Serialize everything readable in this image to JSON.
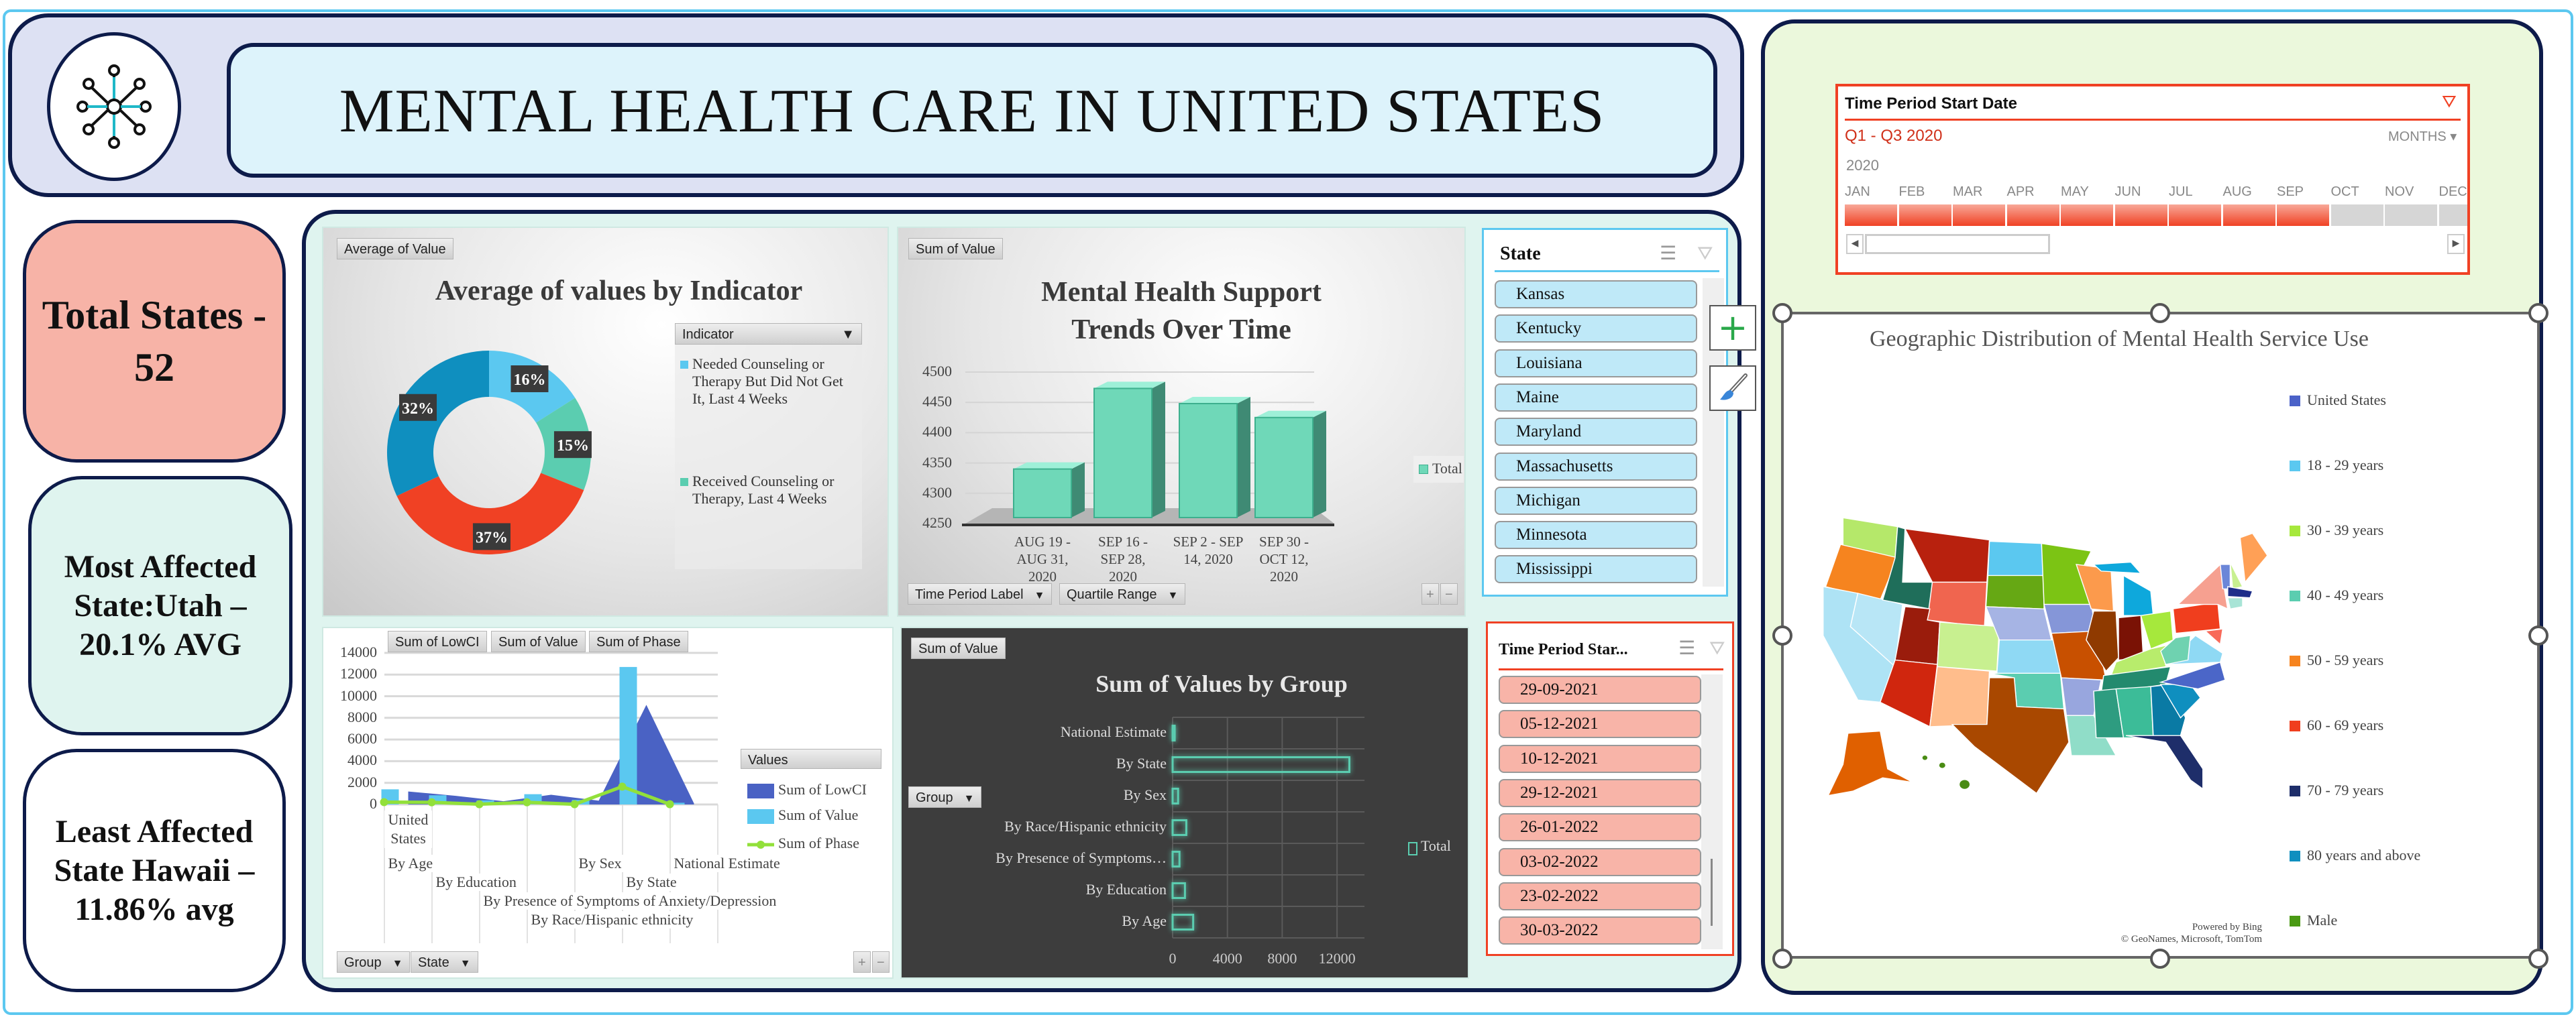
{
  "header": {
    "title": "MENTAL HEALTH CARE IN UNITED STATES",
    "logo_icon": "network-nodes-icon"
  },
  "kpis": [
    {
      "text": "Total States - 52",
      "color": "#f7b3a7"
    },
    {
      "text": "Most Affected State:Utah – 20.1% AVG",
      "color": "#dff4ef"
    },
    {
      "text": "Least Affected State Hawaii –11.86% avg",
      "color": "#ffffff"
    }
  ],
  "chart_data": [
    {
      "type": "pie",
      "variant": "donut",
      "title": "Average of values by Indicator",
      "field_buttons": {
        "value": "Average of Value",
        "legend": "Indicator"
      },
      "slices": [
        {
          "label": "Needed Counseling or Therapy But Did Not Get It, Last 4 Weeks",
          "value": 16,
          "data_label": "16%",
          "color": "#5bc8f0"
        },
        {
          "label": "Received Counseling or Therapy, Last 4 Weeks",
          "value": 15,
          "data_label": "15%",
          "color": "#5bcdb0"
        },
        {
          "label": "",
          "value": 37,
          "data_label": "37%",
          "color": "#f04124"
        },
        {
          "label": "",
          "value": 32,
          "data_label": "32%",
          "color": "#0f8fbf"
        }
      ],
      "legend": "right"
    },
    {
      "type": "bar",
      "variant": "3d-column",
      "title": "Mental Health Support Trends Over Time",
      "field_buttons": {
        "value": "Sum of Value",
        "axis": [
          "Time Period Label",
          "Quartile Range"
        ],
        "zoom": [
          "+",
          "−"
        ]
      },
      "categories": [
        "AUG 19 - AUG 31, 2020",
        "SEP 16 - SEP 28, 2020",
        "SEP 2 - SEP 14, 2020",
        "SEP 30 - OCT 12, 2020"
      ],
      "series": [
        {
          "name": "Total",
          "values": [
            4340,
            4473,
            4448,
            4425
          ],
          "color": "#6fd8b8"
        }
      ],
      "yticks": [
        4250,
        4300,
        4350,
        4400,
        4450,
        4500
      ],
      "ylim": [
        4250,
        4500
      ],
      "legend": "right"
    },
    {
      "type": "line",
      "variant": "combo area/column/line",
      "title": "",
      "field_buttons": {
        "values": [
          "Sum of LowCI",
          "Sum of Value",
          "Sum of Phase"
        ],
        "axis": [
          "Group",
          "State"
        ],
        "zoom": [
          "+",
          "−"
        ],
        "legend_header": "Values"
      },
      "outer_category": "United States",
      "categories": [
        "By Age",
        "By Education",
        "By Presence of Symptoms of Anxiety/Depression",
        "By Race/Hispanic ethnicity",
        "By Sex",
        "By State",
        "National Estimate"
      ],
      "series": [
        {
          "name": "Sum of LowCI",
          "kind": "area",
          "values": [
            1200,
            800,
            300,
            900,
            350,
            9200,
            100
          ],
          "color": "#4a62c4"
        },
        {
          "name": "Sum of Value",
          "kind": "column",
          "values": [
            1400,
            850,
            380,
            950,
            420,
            12700,
            160
          ],
          "color": "#5bc8f0"
        },
        {
          "name": "Sum of Phase",
          "kind": "line",
          "values": [
            220,
            200,
            20,
            200,
            20,
            1650,
            20
          ],
          "color": "#92e03a"
        }
      ],
      "yticks": [
        0,
        2000,
        4000,
        6000,
        8000,
        10000,
        12000,
        14000
      ],
      "ylim": [
        0,
        14000
      ],
      "legend": "right"
    },
    {
      "type": "bar",
      "variant": "horizontal",
      "title": "Sum of Values by Group",
      "field_buttons": {
        "value": "Sum of Value",
        "axis": "Group"
      },
      "categories": [
        "National Estimate",
        "By State",
        "By Sex",
        "By Race/Hispanic ethnicity",
        "By Presence of Symptoms…",
        "By Education",
        "By Age"
      ],
      "series": [
        {
          "name": "Total",
          "values": [
            150,
            12900,
            400,
            1000,
            500,
            900,
            1500
          ],
          "color": "#5bcdb0"
        }
      ],
      "xticks": [
        0,
        4000,
        8000,
        12000
      ],
      "xlim": [
        0,
        14000
      ],
      "legend": "right"
    }
  ],
  "state_slicer": {
    "title": "State",
    "items": [
      "Kansas",
      "Kentucky",
      "Louisiana",
      "Maine",
      "Maryland",
      "Massachusetts",
      "Michigan",
      "Minnesota",
      "Mississippi"
    ],
    "item_color": "#bfe9f8",
    "accent": "#5cc8f0"
  },
  "date_slicer": {
    "title": "Time Period Star...",
    "items": [
      "29-09-2021",
      "05-12-2021",
      "10-12-2021",
      "29-12-2021",
      "26-01-2022",
      "03-02-2022",
      "23-02-2022",
      "30-03-2022"
    ],
    "item_color": "#f8b4a8",
    "accent": "#f04124"
  },
  "side_buttons": [
    {
      "icon": "plus-icon",
      "label": "+"
    },
    {
      "icon": "paintbrush-icon"
    }
  ],
  "timeline": {
    "title": "Time Period Start Date",
    "range_label": "Q1 - Q3 2020",
    "level": "MONTHS",
    "year": "2020",
    "months": [
      "JAN",
      "FEB",
      "MAR",
      "APR",
      "MAY",
      "JUN",
      "JUL",
      "AUG",
      "SEP",
      "OCT",
      "NOV",
      "DEC"
    ],
    "selected_months": 9
  },
  "map": {
    "title": "Geographic Distribution of Mental Health Service Use",
    "legend": [
      {
        "label": "United States",
        "color": "#4b62c8"
      },
      {
        "label": "18 - 29 years",
        "color": "#5bc8f0"
      },
      {
        "label": "30 - 39 years",
        "color": "#a6e83c"
      },
      {
        "label": "40 - 49 years",
        "color": "#5bcdb0"
      },
      {
        "label": "50 - 59 years",
        "color": "#f6841f"
      },
      {
        "label": "60 - 69 years",
        "color": "#f03e1e"
      },
      {
        "label": "70 - 79 years",
        "color": "#1e2e6a"
      },
      {
        "label": "80 years and above",
        "color": "#0f8fbf"
      },
      {
        "label": "Male",
        "color": "#4a9a14"
      }
    ],
    "attribution": [
      "Powered by Bing",
      "© GeoNames, Microsoft, TomTom"
    ]
  }
}
